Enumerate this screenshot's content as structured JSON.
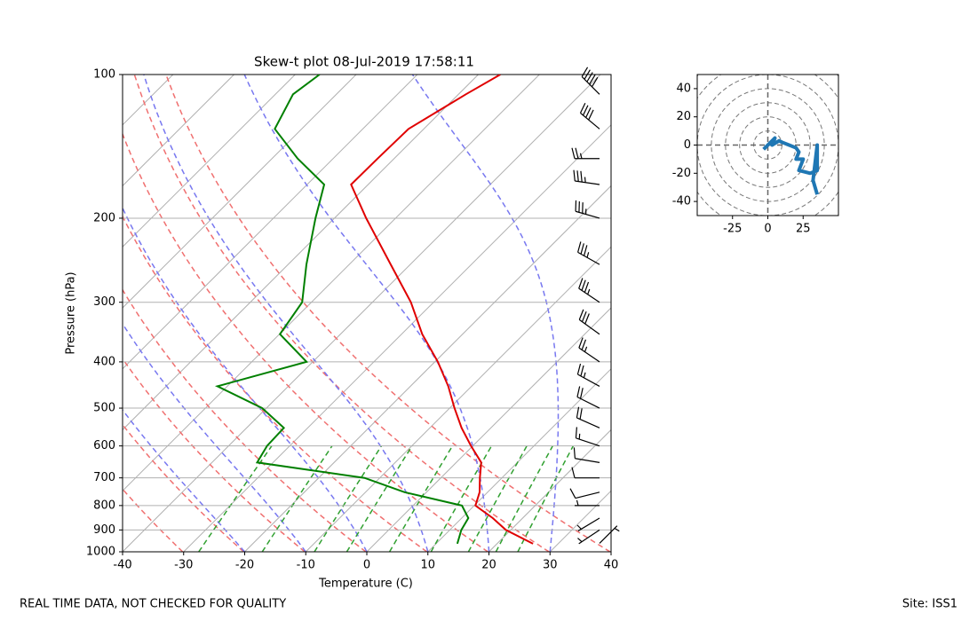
{
  "chart_data": [
    {
      "type": "skewt",
      "title": "Skew-t plot 08-Jul-2019 17:58:11",
      "xlabel": "Temperature (C)",
      "ylabel": "Pressure (hPa)",
      "xlim": [
        -40,
        40
      ],
      "xticks": [
        -40,
        -30,
        -20,
        -10,
        0,
        10,
        20,
        30,
        40
      ],
      "ylim": [
        1000,
        100
      ],
      "yticks": [
        100,
        200,
        300,
        400,
        500,
        600,
        700,
        800,
        900,
        1000
      ],
      "log_y": true,
      "grid": true,
      "y": [
        962,
        900,
        850,
        800,
        750,
        700,
        650,
        600,
        550,
        500,
        450,
        400,
        350,
        300,
        250,
        200,
        170,
        150,
        130,
        110,
        100
      ],
      "series": [
        {
          "color": "#e00000",
          "values": [
            25.9,
            19.2,
            15.1,
            10.2,
            8.7,
            6.4,
            4.1,
            -0.3,
            -4.8,
            -9.2,
            -13.8,
            -19.5,
            -26.6,
            -33.7,
            -43.2,
            -54.8,
            -62.8,
            -62.7,
            -62.5,
            -58.8,
            -56.4
          ]
        },
        {
          "color": "#008000",
          "values": [
            13.5,
            11.9,
            11.1,
            8.0,
            -3.6,
            -12.5,
            -32.6,
            -33.7,
            -33.9,
            -40.7,
            -51.6,
            -41.0,
            -49.9,
            -51.5,
            -57.0,
            -63.1,
            -67.2,
            -75.8,
            -84.4,
            -87.1,
            -86.0
          ]
        }
      ],
      "wind": {
        "pressure": [
          960,
          900,
          850,
          800,
          750,
          700,
          650,
          600,
          550,
          500,
          450,
          400,
          350,
          300,
          250,
          200,
          170,
          150,
          130,
          110
        ],
        "u": [
          -3,
          3,
          5,
          5,
          8,
          10,
          12,
          15,
          18,
          20,
          22,
          22,
          25,
          30,
          32,
          35,
          35,
          25,
          30,
          35
        ],
        "v": [
          -3,
          2,
          3,
          0,
          2,
          0,
          -2,
          -5,
          -8,
          -10,
          -12,
          -15,
          -18,
          -20,
          -18,
          -10,
          -5,
          0,
          -25,
          -35
        ]
      }
    },
    {
      "type": "hodograph",
      "color": "#1f77b4",
      "x": [
        -3,
        5,
        3,
        8,
        10,
        15,
        20,
        22,
        20,
        25,
        22,
        30,
        35,
        35,
        32,
        35
      ],
      "y": [
        -3,
        5,
        0,
        3,
        2,
        0,
        -2,
        -5,
        -10,
        -10,
        -18,
        -20,
        -18,
        0,
        -25,
        -35
      ],
      "xlim": [
        -50,
        50
      ],
      "ylim": [
        -50,
        50
      ],
      "xticks": [
        -25,
        0,
        25
      ],
      "yticks": [
        -40,
        -20,
        0,
        20,
        40
      ]
    }
  ],
  "footer": {
    "note": "REAL TIME DATA, NOT CHECKED FOR QUALITY",
    "site": "Site: ISS1"
  }
}
